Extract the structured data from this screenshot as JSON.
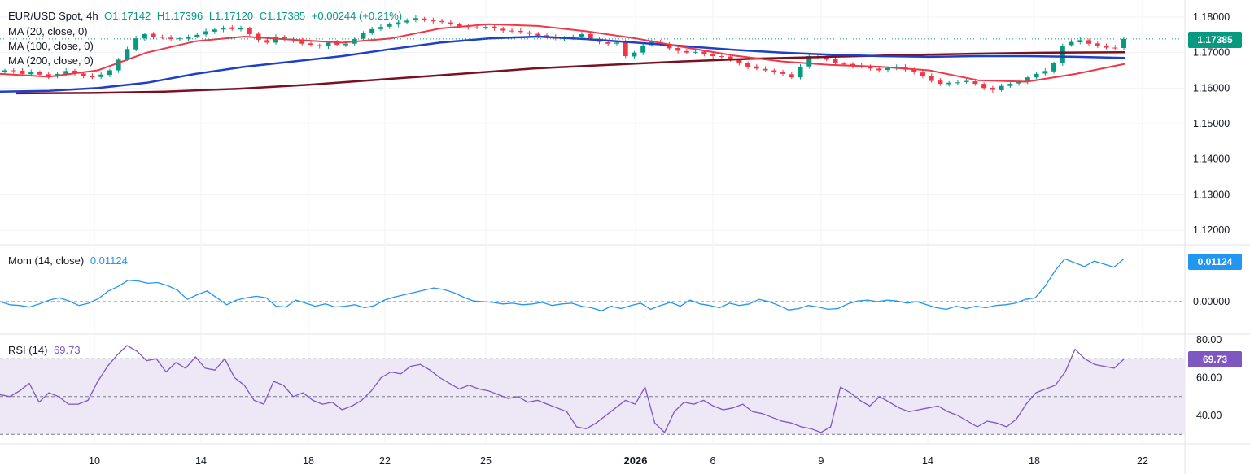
{
  "header": {
    "symbol": "EUR/USD Spot, 4h",
    "open": "O1.17142",
    "high": "H1.17396",
    "low": "L1.17120",
    "close": "C1.17385",
    "change": "+0.00244 (+0.21%)"
  },
  "ma_labels": [
    "MA (20, close, 0)",
    "MA (100, close, 0)",
    "MA (200, close, 0)"
  ],
  "mom_label": "Mom (14, close)",
  "mom_value": "0.01124",
  "rsi_label": "RSI (14)",
  "rsi_value": "69.73",
  "price_tag": "1.17385",
  "mom_tag": "0.01124",
  "rsi_tag": "69.73",
  "colors": {
    "up": "#089981",
    "down": "#f23645",
    "ma20": "#f23645",
    "ma100": "#1e40c8",
    "ma200": "#7b1020",
    "mom": "#2196f3",
    "rsi": "#7e57c2",
    "rsi_band": "#ede7f6"
  },
  "chart_data": [
    {
      "type": "candlestick",
      "title": "EUR/USD Spot, 4h",
      "y_ticks": [
        "1.18000",
        "1.17000",
        "1.16000",
        "1.15000",
        "1.14000",
        "1.13000",
        "1.12000"
      ],
      "ylim": [
        1.115,
        1.1825
      ],
      "x_ticks": [
        "10",
        "14",
        "18",
        "22",
        "25",
        "2026",
        "6",
        "9",
        "14",
        "18",
        "22"
      ],
      "last_close": 1.17385,
      "ma20": [
        1.164,
        1.1632,
        1.165,
        1.17,
        1.1732,
        1.1745,
        1.1736,
        1.1728,
        1.174,
        1.1768,
        1.178,
        1.1775,
        1.176,
        1.174,
        1.1715,
        1.1692,
        1.1675,
        1.1665,
        1.166,
        1.165,
        1.1622,
        1.1618,
        1.164,
        1.1668
      ],
      "ma100": [
        1.159,
        1.1592,
        1.16,
        1.1615,
        1.164,
        1.166,
        1.1675,
        1.169,
        1.171,
        1.1728,
        1.174,
        1.1745,
        1.1738,
        1.1728,
        1.1718,
        1.1708,
        1.17,
        1.1694,
        1.169,
        1.1688,
        1.169,
        1.169,
        1.1688,
        1.1685
      ],
      "ma200": [
        1.1585,
        1.1586,
        1.159,
        1.1598,
        1.161,
        1.1625,
        1.164,
        1.1655,
        1.1665,
        1.1675,
        1.1683,
        1.1688,
        1.1693,
        1.1697,
        1.17,
        1.1701
      ],
      "closes": [
        1.165,
        1.1648,
        1.164,
        1.1645,
        1.1638,
        1.1633,
        1.164,
        1.1648,
        1.1642,
        1.1635,
        1.163,
        1.1638,
        1.165,
        1.168,
        1.171,
        1.174,
        1.1752,
        1.1745,
        1.1742,
        1.1738,
        1.174,
        1.1745,
        1.175,
        1.176,
        1.1765,
        1.177,
        1.1766,
        1.1768,
        1.1752,
        1.1736,
        1.1728,
        1.1744,
        1.174,
        1.1735,
        1.1725,
        1.1722,
        1.1718,
        1.1728,
        1.1722,
        1.1725,
        1.1738,
        1.1755,
        1.1766,
        1.1772,
        1.178,
        1.1785,
        1.179,
        1.1797,
        1.1793,
        1.1788,
        1.1786,
        1.178,
        1.1775,
        1.1772,
        1.177,
        1.1772,
        1.1768,
        1.1762,
        1.176,
        1.1758,
        1.1753,
        1.1748,
        1.1745,
        1.174,
        1.1742,
        1.1745,
        1.1752,
        1.1738,
        1.173,
        1.1725,
        1.1728,
        1.169,
        1.17,
        1.172,
        1.173,
        1.1725,
        1.1712,
        1.1705,
        1.17,
        1.1702,
        1.1696,
        1.169,
        1.1688,
        1.168,
        1.167,
        1.166,
        1.1655,
        1.165,
        1.1645,
        1.164,
        1.163,
        1.166,
        1.169,
        1.1688,
        1.168,
        1.167,
        1.1668,
        1.1662,
        1.166,
        1.1655,
        1.165,
        1.1656,
        1.166,
        1.1652,
        1.1645,
        1.1635,
        1.162,
        1.1612,
        1.1615,
        1.1616,
        1.162,
        1.1612,
        1.16,
        1.1595,
        1.1606,
        1.1612,
        1.162,
        1.163,
        1.164,
        1.1648,
        1.167,
        1.172,
        1.173,
        1.1735,
        1.1725,
        1.172,
        1.1714,
        1.1712,
        1.17385
      ],
      "momentum": [
        0.0,
        -0.0008,
        -0.001,
        -0.0014,
        -0.0006,
        0.0004,
        0.001,
        0.0002,
        -0.001,
        -0.0004,
        0.0008,
        0.0028,
        0.004,
        0.0056,
        0.0054,
        0.0048,
        0.005,
        0.0042,
        0.003,
        0.0006,
        0.0018,
        0.0028,
        0.001,
        -0.0008,
        0.0004,
        0.001,
        0.0014,
        0.001,
        -0.0012,
        -0.0014,
        0.0004,
        -0.0004,
        -0.0012,
        -0.0006,
        -0.0014,
        -0.0012,
        -0.0008,
        -0.0016,
        -0.001,
        0.0004,
        0.0012,
        0.0018,
        0.0024,
        0.003,
        0.0036,
        0.0032,
        0.0024,
        0.0012,
        0.0002,
        0.0,
        -0.0002,
        -0.0006,
        -0.0004,
        -0.0008,
        -0.0006,
        -0.0002,
        -0.001,
        -0.0006,
        -0.0004,
        -0.0012,
        -0.0016,
        -0.0024,
        -0.0012,
        -0.0018,
        -0.001,
        -0.0004,
        -0.002,
        -0.001,
        -0.0002,
        -0.0012,
        0.0004,
        -0.0006,
        -0.001,
        -0.0016,
        -0.0004,
        -0.001,
        -0.0006,
        0.0006,
        0.0,
        -0.001,
        -0.0022,
        -0.0018,
        -0.001,
        -0.0014,
        -0.002,
        -0.0018,
        -0.0006,
        0.0002,
        0.0004,
        0.0,
        0.0004,
        0.0002,
        -0.0004,
        0.0,
        -0.0008,
        -0.0016,
        -0.002,
        -0.0012,
        -0.0018,
        -0.0012,
        -0.0016,
        -0.001,
        -0.0008,
        -0.0004,
        0.0006,
        0.001,
        0.004,
        0.008,
        0.0112,
        0.0102,
        0.0092,
        0.0106,
        0.0098,
        0.009,
        0.01124
      ],
      "rsi": [
        51,
        50,
        53,
        57,
        47,
        52,
        50,
        46,
        46,
        48,
        58,
        66,
        72,
        77,
        74,
        69,
        70,
        63,
        68,
        65,
        71,
        65,
        64,
        70,
        60,
        56,
        48,
        46,
        58,
        56,
        50,
        52,
        48,
        46,
        47,
        43,
        45,
        48,
        53,
        60,
        63,
        62,
        66,
        67,
        64,
        60,
        57,
        54,
        56,
        54,
        53,
        51,
        49,
        50,
        47,
        48,
        46,
        44,
        42,
        34,
        33,
        36,
        40,
        44,
        48,
        46,
        55,
        36,
        31,
        42,
        47,
        46,
        48,
        45,
        43,
        44,
        46,
        42,
        41,
        39,
        37,
        36,
        34,
        33,
        31,
        34,
        55,
        52,
        48,
        45,
        50,
        47,
        44,
        42,
        43,
        44,
        45,
        42,
        40,
        37,
        34,
        37,
        36,
        34,
        38,
        46,
        52,
        54,
        56,
        63,
        75,
        70,
        67,
        66,
        65,
        69.73
      ],
      "rsi_levels": [
        70,
        50,
        30
      ],
      "rsi_ticks": [
        "80.00",
        "60.00",
        "40.00"
      ],
      "mom_ticks": [
        "0.00000"
      ]
    }
  ]
}
